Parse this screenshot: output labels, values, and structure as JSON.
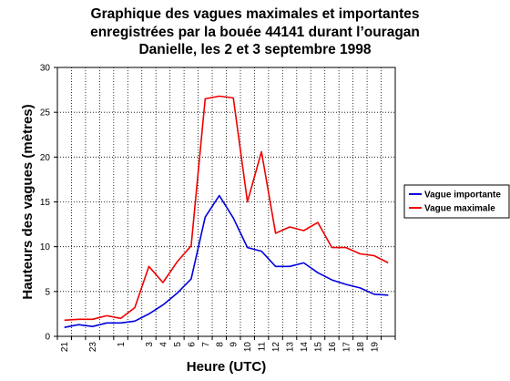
{
  "chart_data": {
    "type": "line",
    "title": [
      "Graphique des vagues maximales et importantes",
      "enregistrées par la bouée 44141 durant l’ouragan",
      "Danielle, les 2 et 3 septembre 1998"
    ],
    "xlabel": "Heure (UTC)",
    "ylabel": "Hauteurs des vagues (mètres)",
    "ylim": [
      0,
      30
    ],
    "yticks": [
      "0",
      "5",
      "10",
      "15",
      "20",
      "25",
      "30"
    ],
    "x": [
      "21",
      "22",
      "23",
      "0",
      "1",
      "2",
      "3",
      "4",
      "5",
      "6",
      "7",
      "8",
      "9",
      "10",
      "11",
      "12",
      "13",
      "14",
      "15",
      "16",
      "17",
      "18",
      "19",
      "20"
    ],
    "xtick_labels": [
      "21",
      "",
      "23",
      "",
      "1",
      "",
      "3",
      "4",
      "5",
      "6",
      "7",
      "8",
      "9",
      "10",
      "11",
      "12",
      "13",
      "14",
      "15",
      "16",
      "17",
      "18",
      "19",
      ""
    ],
    "grid": true,
    "legend_position": "right",
    "series": [
      {
        "name": "Vague importante",
        "color": "#0000dd",
        "values": [
          1.0,
          1.3,
          1.1,
          1.5,
          1.5,
          1.7,
          2.5,
          3.5,
          4.8,
          6.4,
          13.3,
          15.7,
          13.2,
          9.9,
          9.5,
          7.8,
          7.8,
          8.2,
          7.1,
          6.3,
          5.8,
          5.4,
          4.7,
          4.6
        ]
      },
      {
        "name": "Vague maximale",
        "color": "#ee0000",
        "values": [
          1.8,
          1.9,
          1.9,
          2.3,
          2.0,
          3.2,
          7.8,
          6.0,
          8.3,
          10.1,
          26.5,
          26.8,
          26.6,
          15.0,
          20.6,
          11.5,
          12.2,
          11.8,
          12.7,
          9.9,
          9.9,
          9.2,
          9.0,
          8.2
        ]
      }
    ]
  }
}
